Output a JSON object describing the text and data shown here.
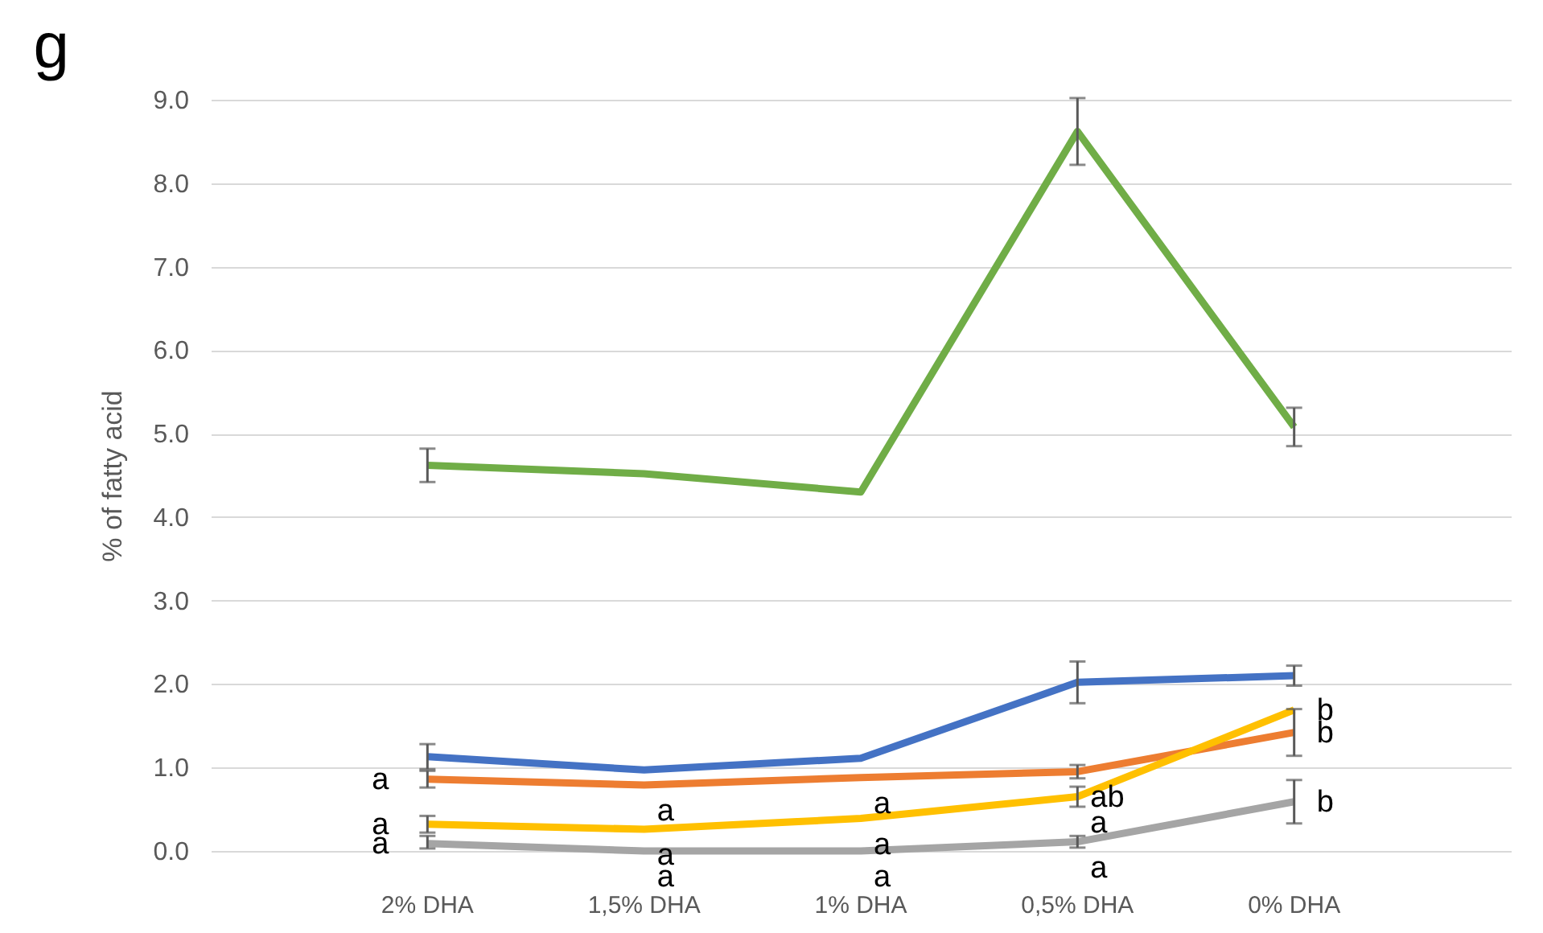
{
  "chart_data": {
    "type": "line",
    "title": "g",
    "ylabel": "% of fatty acid",
    "categories": [
      "2% DHA",
      "1,5% DHA",
      "1% DHA",
      "0,5% DHA",
      "0% DHA"
    ],
    "ylim": [
      0,
      9
    ],
    "yticks": [
      {
        "value": 0,
        "label": "0.0"
      },
      {
        "value": 1,
        "label": "1.0"
      },
      {
        "value": 2,
        "label": "2.0"
      },
      {
        "value": 3,
        "label": "3.0"
      },
      {
        "value": 4,
        "label": "4.0"
      },
      {
        "value": 5,
        "label": "5.0"
      },
      {
        "value": 6,
        "label": "6.0"
      },
      {
        "value": 7,
        "label": "7.0"
      },
      {
        "value": 8,
        "label": "8.0"
      },
      {
        "value": 9,
        "label": "9.0"
      }
    ],
    "grid": "y",
    "marker": "none",
    "line_style": "solid",
    "series": [
      {
        "color": "#70ad47",
        "values": [
          4.62,
          4.52,
          4.3,
          8.62,
          5.08
        ],
        "errors": [
          0.2,
          null,
          null,
          0.4,
          0.23
        ]
      },
      {
        "color": "#4472c4",
        "values": [
          1.13,
          0.97,
          1.11,
          2.02,
          2.1
        ],
        "errors": [
          0.15,
          null,
          null,
          0.25,
          0.12
        ]
      },
      {
        "color": "#ed7d31",
        "values": [
          0.86,
          0.79,
          0.88,
          0.95,
          1.42
        ],
        "errors": [
          0.1,
          null,
          null,
          0.08,
          0.28
        ]
      },
      {
        "color": "#ffc000",
        "values": [
          0.32,
          0.26,
          0.39,
          0.65,
          1.69
        ],
        "errors": [
          0.1,
          null,
          null,
          0.12,
          null
        ]
      },
      {
        "color": "#a5a5a5",
        "values": [
          0.09,
          0,
          0,
          0.11,
          0.59
        ],
        "errors": [
          [
            0.03,
            0.18
          ],
          null,
          null,
          0.07,
          0.26
        ]
      }
    ],
    "annotations": [
      {
        "text": "a",
        "x": "2% DHA",
        "y": 0.86
      },
      {
        "text": "a",
        "x": "1,5% DHA",
        "y": 0.79
      },
      {
        "text": "a",
        "x": "1% DHA",
        "y": 0.88
      },
      {
        "text": "ab",
        "x": "0,5% DHA",
        "y": 0.95
      },
      {
        "text": "b",
        "x": "0% DHA",
        "y": 1.42
      },
      {
        "text": "a",
        "x": "2% DHA",
        "y": 0.32
      },
      {
        "text": "a",
        "x": "1,5% DHA",
        "y": 0.26
      },
      {
        "text": "a",
        "x": "1% DHA",
        "y": 0.39
      },
      {
        "text": "a",
        "x": "0,5% DHA",
        "y": 0.65
      },
      {
        "text": "b",
        "x": "0% DHA",
        "y": 1.69
      },
      {
        "text": "a",
        "x": "2% DHA",
        "y": 0.09
      },
      {
        "text": "a",
        "x": "1,5% DHA",
        "y": 0
      },
      {
        "text": "a",
        "x": "1% DHA",
        "y": 0
      },
      {
        "text": "a",
        "x": "0,5% DHA",
        "y": 0.11
      },
      {
        "text": "b",
        "x": "0% DHA",
        "y": 0.59
      }
    ]
  }
}
